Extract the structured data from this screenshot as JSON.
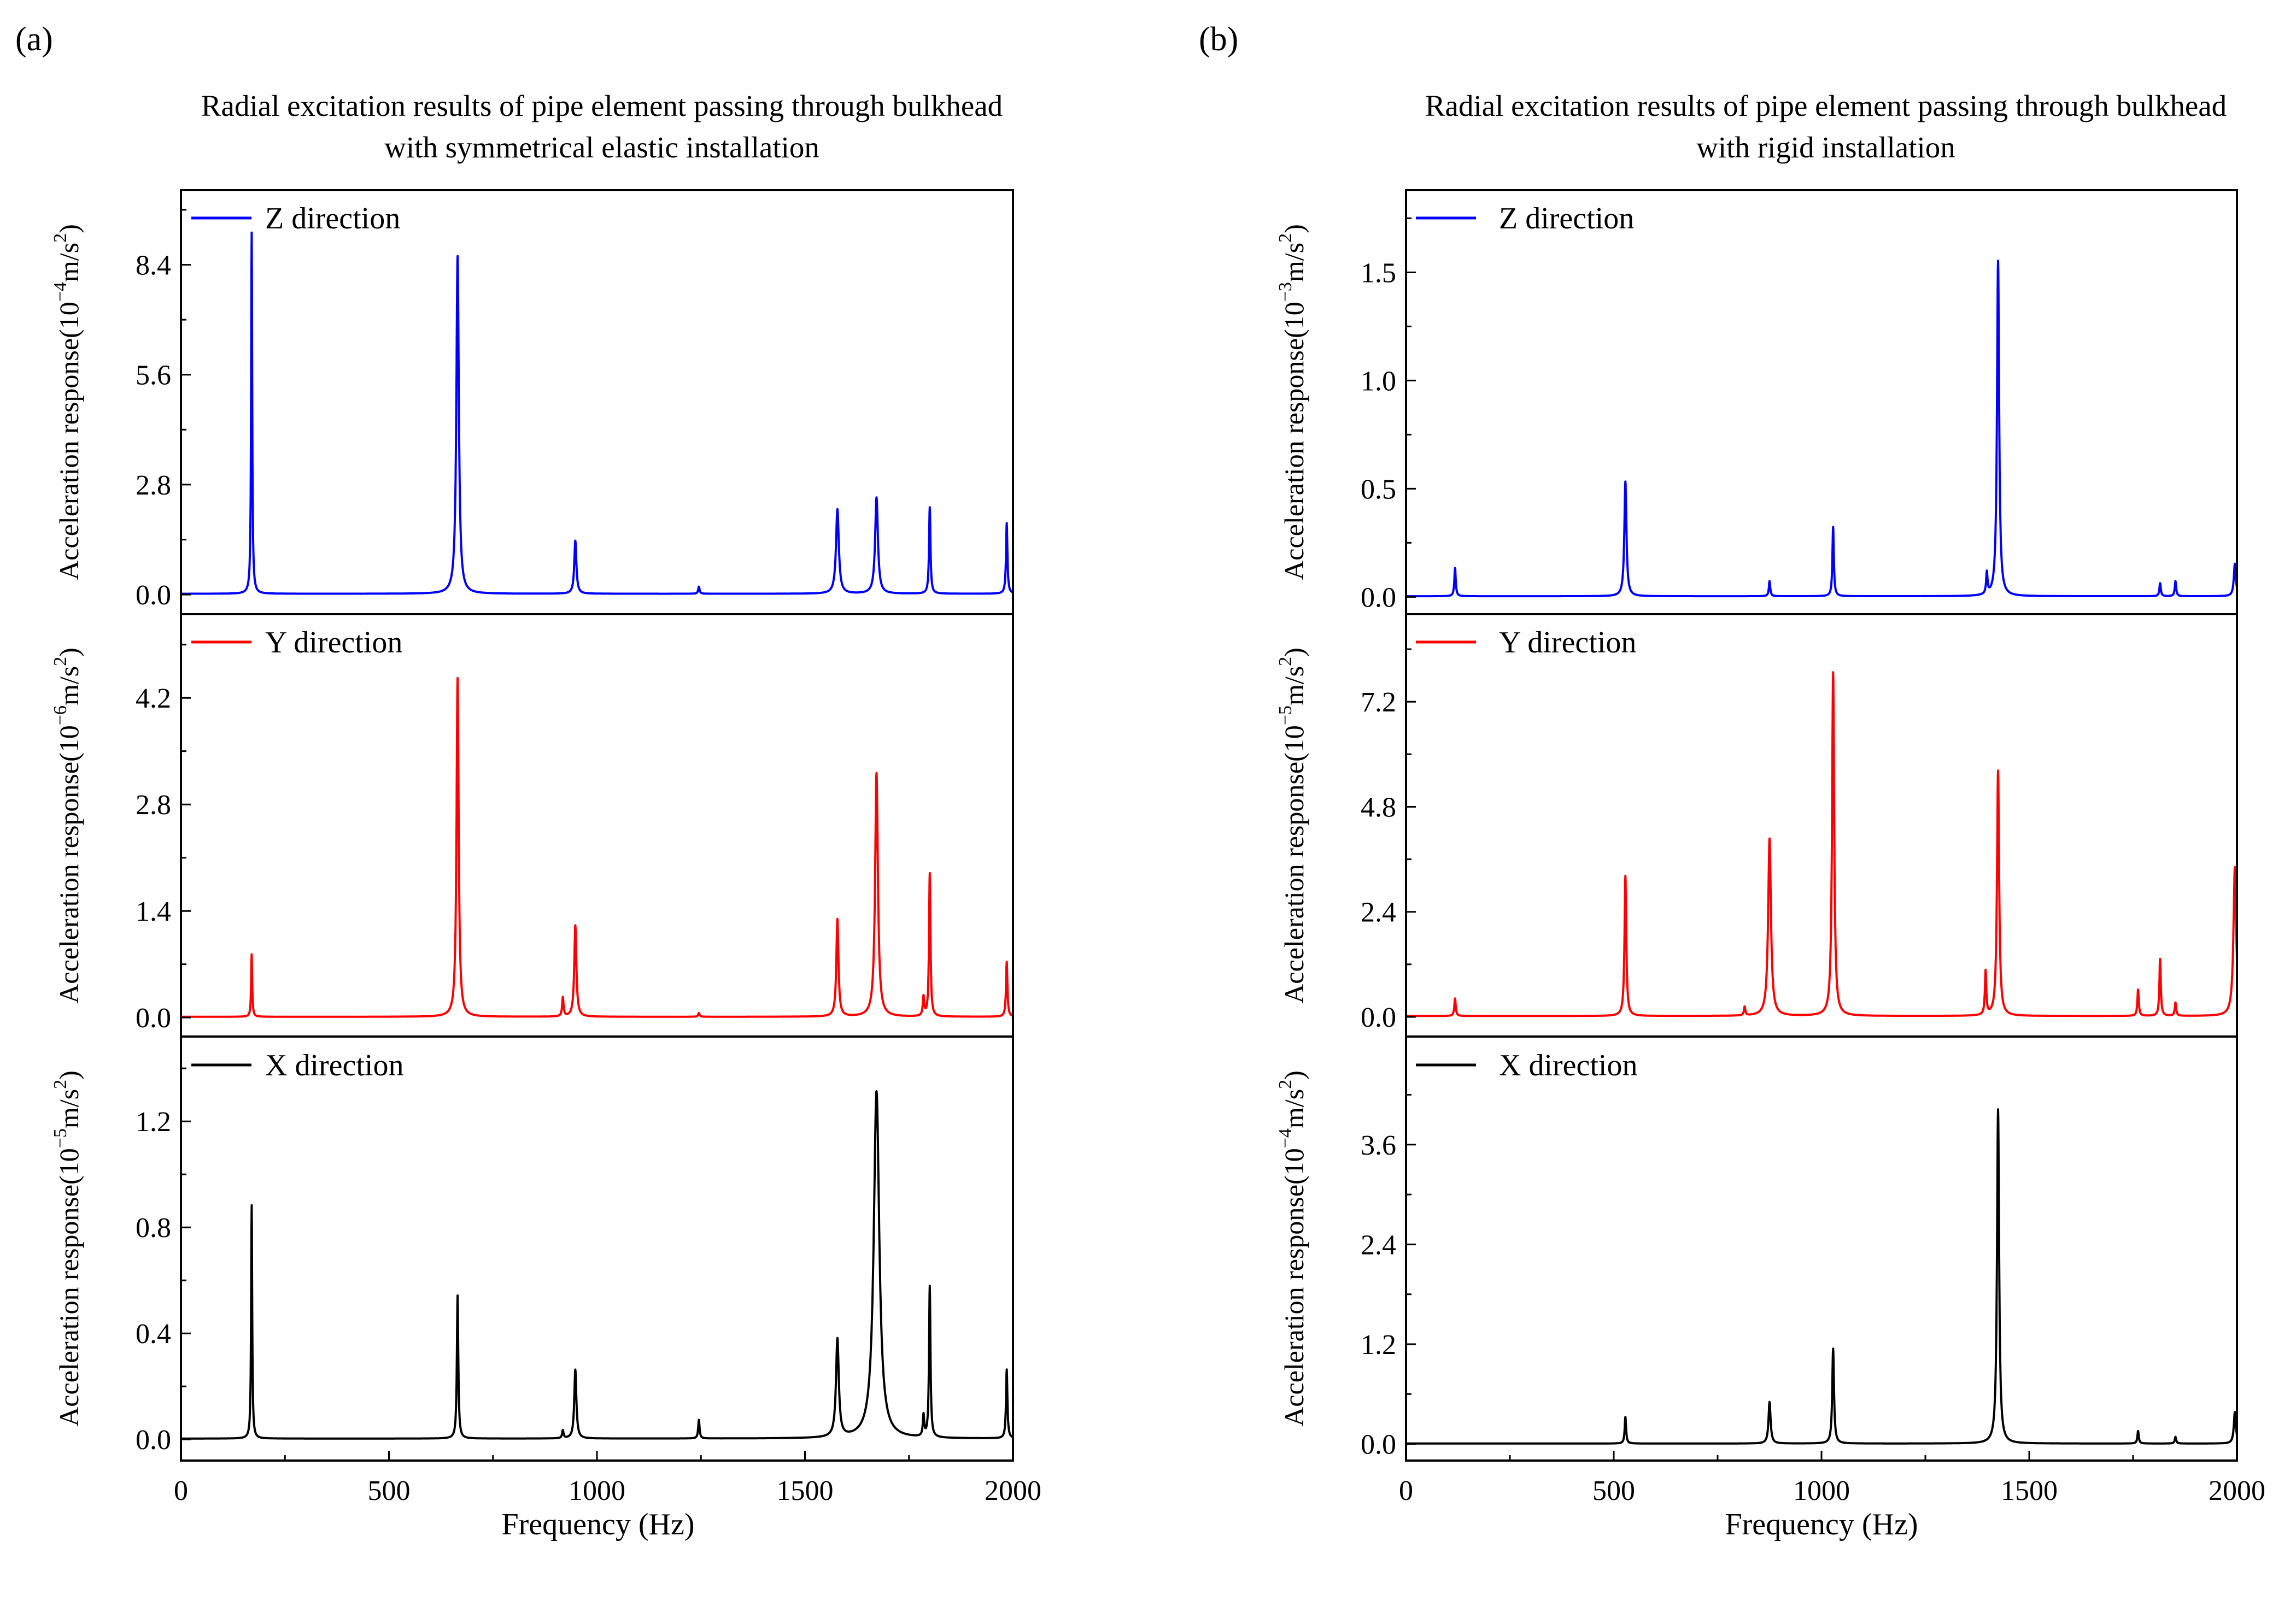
{
  "chart_data": [
    {
      "type": "line",
      "panel_label": "(a)",
      "title_lines": [
        "Radial excitation results of pipe element passing through bulkhead",
        "with symmetrical elastic installation"
      ],
      "xlabel": "Frequency (Hz)",
      "xlim": [
        0,
        2000
      ],
      "xticks": [
        0,
        500,
        1000,
        1500,
        2000
      ],
      "xtick_labels": [
        "0",
        "500",
        "1000",
        "1500",
        "2000"
      ],
      "subplots": [
        {
          "legend": "Z direction",
          "color": "#0000ff",
          "ylabel_prefix": "Acceleration response(10",
          "ylabel_exp": "−4",
          "ylabel_unit": "m/s",
          "ylabel_sq": "2",
          "ylim": [
            -0.5,
            10.3
          ],
          "yticks": [
            0.0,
            2.8,
            5.6,
            8.4
          ],
          "ytick_labels": [
            "0.0",
            "2.8",
            "5.6",
            "8.4"
          ],
          "baseline": 0.02,
          "peaks": [
            [
              170,
              9.2,
              1.5
            ],
            [
              665,
              8.6,
              3.5
            ],
            [
              948,
              1.35,
              3
            ],
            [
              1245,
              0.18,
              2
            ],
            [
              1578,
              2.15,
              4
            ],
            [
              1672,
              2.45,
              4
            ],
            [
              1800,
              2.2,
              2
            ],
            [
              1985,
              1.8,
              2
            ]
          ]
        },
        {
          "legend": "Y direction",
          "color": "#ff0000",
          "ylabel_prefix": "Acceleration response(10",
          "ylabel_exp": "−6",
          "ylabel_unit": "m/s",
          "ylabel_sq": "2",
          "ylim": [
            -0.25,
            5.3
          ],
          "yticks": [
            0.0,
            1.4,
            2.8,
            4.2
          ],
          "ytick_labels": [
            "0.0",
            "1.4",
            "2.8",
            "4.2"
          ],
          "baseline": 0.01,
          "peaks": [
            [
              170,
              0.82,
              1.5
            ],
            [
              665,
              4.45,
              3
            ],
            [
              918,
              0.25,
              2
            ],
            [
              948,
              1.2,
              3
            ],
            [
              1245,
              0.05,
              2
            ],
            [
              1578,
              1.28,
              3
            ],
            [
              1672,
              3.2,
              4
            ],
            [
              1785,
              0.25,
              2
            ],
            [
              1800,
              1.88,
              2
            ],
            [
              1985,
              0.72,
              2
            ]
          ]
        },
        {
          "legend": "X direction",
          "color": "#000000",
          "ylabel_prefix": "Acceleration response(10",
          "ylabel_exp": "−5",
          "ylabel_unit": "m/s",
          "ylabel_sq": "2",
          "ylim": [
            -0.08,
            1.52
          ],
          "yticks": [
            0.0,
            0.4,
            0.8,
            1.2
          ],
          "ytick_labels": [
            "0.0",
            "0.4",
            "0.8",
            "1.2"
          ],
          "baseline": 0.003,
          "peaks": [
            [
              170,
              0.88,
              1.5
            ],
            [
              665,
              0.54,
              2
            ],
            [
              918,
              0.03,
              2
            ],
            [
              948,
              0.26,
              3
            ],
            [
              1245,
              0.07,
              2
            ],
            [
              1578,
              0.37,
              4
            ],
            [
              1672,
              1.31,
              8
            ],
            [
              1785,
              0.08,
              2
            ],
            [
              1800,
              0.57,
              2
            ],
            [
              1985,
              0.26,
              2
            ]
          ]
        }
      ]
    },
    {
      "type": "line",
      "panel_label": "(b)",
      "title_lines": [
        "Radial excitation results of pipe element passing through bulkhead",
        "with rigid installation"
      ],
      "xlabel": "Frequency (Hz)",
      "xlim": [
        0,
        2000
      ],
      "xticks": [
        0,
        500,
        1000,
        1500,
        2000
      ],
      "xtick_labels": [
        "0",
        "500",
        "1000",
        "1500",
        "2000"
      ],
      "subplots": [
        {
          "legend": "Z direction",
          "color": "#0000ff",
          "ylabel_prefix": "Acceleration response(10",
          "ylabel_exp": "−3",
          "ylabel_unit": "m/s",
          "ylabel_sq": "2",
          "ylim": [
            -0.08,
            1.88
          ],
          "yticks": [
            0.0,
            0.5,
            1.0,
            1.5
          ],
          "ytick_labels": [
            "0.0",
            "0.5",
            "1.0",
            "1.5"
          ],
          "baseline": 0.003,
          "peaks": [
            [
              118,
              0.13,
              2
            ],
            [
              528,
              0.53,
              3
            ],
            [
              875,
              0.07,
              2
            ],
            [
              1028,
              0.32,
              2
            ],
            [
              1398,
              0.1,
              2
            ],
            [
              1425,
              1.55,
              3
            ],
            [
              1815,
              0.06,
              2
            ],
            [
              1852,
              0.07,
              2
            ],
            [
              1995,
              0.15,
              3
            ]
          ]
        },
        {
          "legend": "Y direction",
          "color": "#ff0000",
          "ylabel_prefix": "Acceleration response(10",
          "ylabel_exp": "−5",
          "ylabel_unit": "m/s",
          "ylabel_sq": "2",
          "ylim": [
            -0.45,
            9.2
          ],
          "yticks": [
            0.0,
            2.4,
            4.8,
            7.2
          ],
          "ytick_labels": [
            "0.0",
            "2.4",
            "4.8",
            "7.2"
          ],
          "baseline": 0.02,
          "peaks": [
            [
              118,
              0.4,
              2
            ],
            [
              528,
              3.2,
              2.5
            ],
            [
              815,
              0.2,
              2
            ],
            [
              875,
              4.05,
              4
            ],
            [
              1028,
              7.85,
              3
            ],
            [
              1395,
              1.0,
              2
            ],
            [
              1425,
              5.6,
              3
            ],
            [
              1762,
              0.6,
              2
            ],
            [
              1815,
              1.3,
              2
            ],
            [
              1852,
              0.3,
              2
            ],
            [
              1995,
              3.4,
              4
            ]
          ]
        },
        {
          "legend": "X direction",
          "color": "#000000",
          "ylabel_prefix": "Acceleration response(10",
          "ylabel_exp": "−4",
          "ylabel_unit": "m/s",
          "ylabel_sq": "2",
          "ylim": [
            -0.2,
            4.9
          ],
          "yticks": [
            0.0,
            1.2,
            2.4,
            3.6
          ],
          "ytick_labels": [
            "0.0",
            "1.2",
            "2.4",
            "3.6"
          ],
          "baseline": 0.005,
          "peaks": [
            [
              528,
              0.32,
              2
            ],
            [
              875,
              0.5,
              3
            ],
            [
              1028,
              1.14,
              2.5
            ],
            [
              1425,
              4.02,
              3
            ],
            [
              1762,
              0.15,
              2
            ],
            [
              1852,
              0.08,
              2
            ],
            [
              1995,
              0.38,
              3
            ]
          ]
        }
      ]
    }
  ]
}
